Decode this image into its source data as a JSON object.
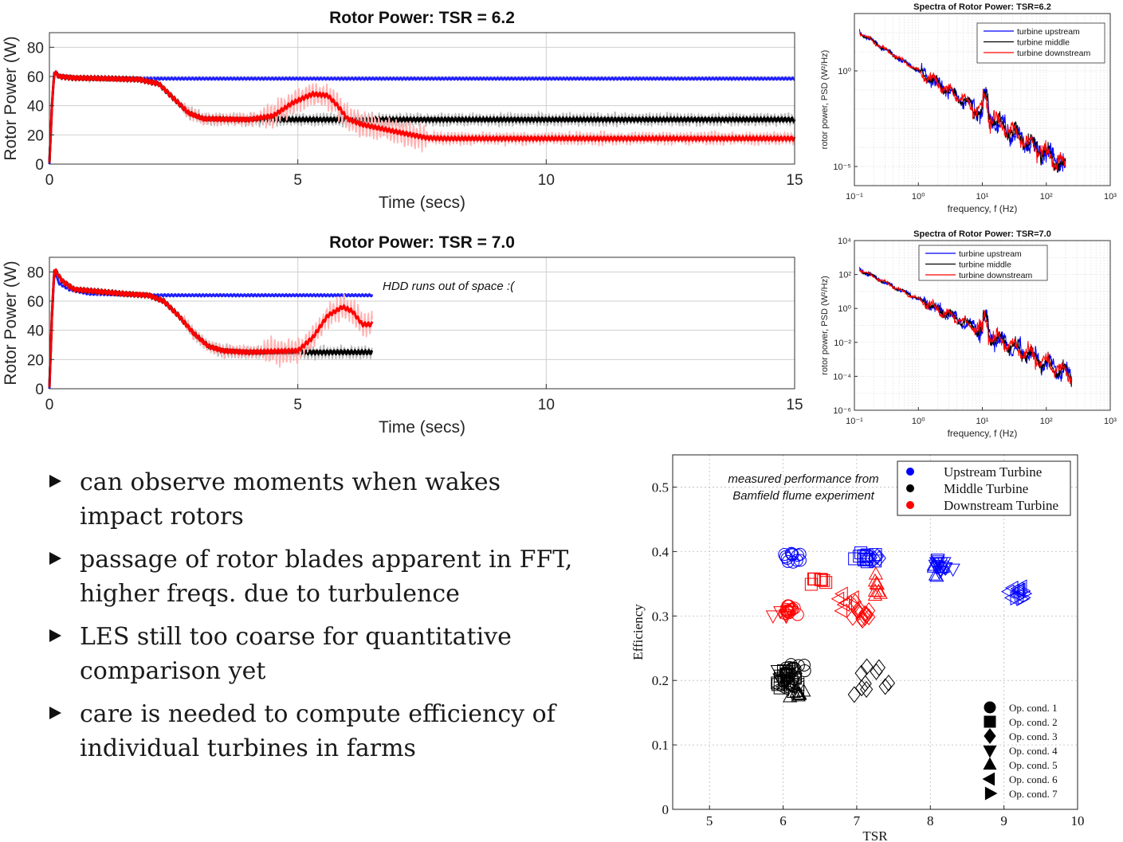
{
  "chart_data": [
    {
      "id": "tsr62",
      "type": "line",
      "title": "Rotor Power: TSR = 6.2",
      "xlabel": "Time (secs)",
      "ylabel": "Rotor Power (W)",
      "xlim": [
        0,
        15
      ],
      "ylim": [
        0,
        90
      ],
      "xticks": [
        0,
        5,
        10,
        15
      ],
      "yticks": [
        0,
        20,
        40,
        60,
        80
      ],
      "grid": true,
      "series": [
        {
          "color": "#1f1fff",
          "points": [
            [
              0,
              0
            ],
            [
              0.05,
              40
            ],
            [
              0.1,
              63
            ],
            [
              0.2,
              60
            ],
            [
              0.5,
              59
            ],
            [
              2,
              58.5
            ],
            [
              15,
              58.5
            ]
          ]
        },
        {
          "color": "#000000",
          "points": [
            [
              0,
              0
            ],
            [
              0.05,
              40
            ],
            [
              0.1,
              63
            ],
            [
              0.2,
              60
            ],
            [
              0.5,
              59
            ],
            [
              1.8,
              58
            ],
            [
              2.2,
              55
            ],
            [
              2.5,
              45
            ],
            [
              2.8,
              35
            ],
            [
              3.1,
              31
            ],
            [
              4,
              30.5
            ],
            [
              15,
              30.5
            ]
          ]
        },
        {
          "color": "#ff0000",
          "points": [
            [
              0,
              0
            ],
            [
              0.05,
              40
            ],
            [
              0.1,
              63
            ],
            [
              0.2,
              60
            ],
            [
              0.5,
              59
            ],
            [
              1.8,
              58
            ],
            [
              2.2,
              55
            ],
            [
              2.5,
              45
            ],
            [
              2.8,
              35
            ],
            [
              3.1,
              31
            ],
            [
              4,
              30.5
            ],
            [
              4.5,
              33
            ],
            [
              4.9,
              42
            ],
            [
              5.3,
              48
            ],
            [
              5.6,
              47
            ],
            [
              5.8,
              40
            ],
            [
              6,
              31
            ],
            [
              6.3,
              27
            ],
            [
              7,
              22
            ],
            [
              7.6,
              18
            ],
            [
              8,
              17.5
            ],
            [
              15,
              17.5
            ]
          ]
        }
      ]
    },
    {
      "id": "tsr70",
      "type": "line",
      "title": "Rotor Power: TSR = 7.0",
      "xlabel": "Time (secs)",
      "ylabel": "Rotor Power (W)",
      "xlim": [
        0,
        15
      ],
      "ylim": [
        0,
        90
      ],
      "xticks": [
        0,
        5,
        10,
        15
      ],
      "yticks": [
        0,
        20,
        40,
        60,
        80
      ],
      "grid": true,
      "annotation": "HDD runs out of space :(",
      "series": [
        {
          "color": "#1f1fff",
          "points": [
            [
              0,
              0
            ],
            [
              0.05,
              50
            ],
            [
              0.1,
              80
            ],
            [
              0.2,
              72
            ],
            [
              0.4,
              68
            ],
            [
              0.8,
              65
            ],
            [
              2,
              64
            ],
            [
              6.5,
              64
            ]
          ]
        },
        {
          "color": "#000000",
          "points": [
            [
              0,
              0
            ],
            [
              0.05,
              50
            ],
            [
              0.1,
              82
            ],
            [
              0.25,
              74
            ],
            [
              0.5,
              68
            ],
            [
              1.5,
              65
            ],
            [
              2,
              64
            ],
            [
              2.3,
              60
            ],
            [
              2.6,
              50
            ],
            [
              2.9,
              38
            ],
            [
              3.2,
              29
            ],
            [
              3.5,
              26
            ],
            [
              4,
              25
            ],
            [
              6.5,
              25
            ]
          ]
        },
        {
          "color": "#ff0000",
          "points": [
            [
              0,
              0
            ],
            [
              0.05,
              50
            ],
            [
              0.1,
              82
            ],
            [
              0.25,
              74
            ],
            [
              0.5,
              68
            ],
            [
              1.5,
              65
            ],
            [
              2,
              64
            ],
            [
              2.3,
              60
            ],
            [
              2.6,
              50
            ],
            [
              2.9,
              38
            ],
            [
              3.2,
              29
            ],
            [
              3.5,
              26
            ],
            [
              4,
              25
            ],
            [
              5,
              26
            ],
            [
              5.3,
              35
            ],
            [
              5.6,
              50
            ],
            [
              5.9,
              56
            ],
            [
              6.1,
              53
            ],
            [
              6.3,
              44
            ],
            [
              6.5,
              44
            ]
          ]
        }
      ]
    },
    {
      "id": "psd62",
      "type": "line",
      "title": "Spectra of Rotor Power: TSR=6.2",
      "xlabel": "frequency, f (Hz)",
      "ylabel": "rotor power, PSD (W²/Hz)",
      "xscale": "log",
      "yscale": "log",
      "xlim": [
        0.1,
        1000
      ],
      "ylim": [
        1e-06,
        1000.0
      ],
      "xtick_labels": [
        "10⁻¹",
        "10⁰",
        "10¹",
        "10²",
        "10³"
      ],
      "ytick_labels": [
        "10⁰",
        "10⁻⁵"
      ],
      "grid": true,
      "legend": "top-right",
      "series": [
        {
          "name": "turbine upstream",
          "color": "#0000ff",
          "x": [
            0.12,
            200
          ],
          "y": [
            100,
            1e-05
          ]
        },
        {
          "name": "turbine middle",
          "color": "#000000",
          "x": [
            0.12,
            200
          ],
          "y": [
            100,
            1e-05
          ]
        },
        {
          "name": "turbine downstream",
          "color": "#ff0000",
          "x": [
            0.12,
            200
          ],
          "y": [
            100,
            1e-05
          ]
        }
      ]
    },
    {
      "id": "psd70",
      "type": "line",
      "title": "Spectra of Rotor Power: TSR=7.0",
      "xlabel": "frequency, f (Hz)",
      "ylabel": "rotor power, PSD (W²/Hz)",
      "xscale": "log",
      "yscale": "log",
      "xlim": [
        0.1,
        1000
      ],
      "ylim": [
        1e-06,
        10000.0
      ],
      "xtick_labels": [
        "10⁻¹",
        "10⁰",
        "10¹",
        "10²",
        "10³"
      ],
      "ytick_labels": [
        "10⁴",
        "10²",
        "10⁰",
        "10⁻²",
        "10⁻⁴",
        "10⁻⁶"
      ],
      "grid": true,
      "legend": "top-center",
      "series": [
        {
          "name": "turbine upstream",
          "color": "#0000ff",
          "x": [
            0.12,
            250
          ],
          "y": [
            200,
            0.0001
          ]
        },
        {
          "name": "turbine middle",
          "color": "#000000",
          "x": [
            0.12,
            250
          ],
          "y": [
            200,
            0.0001
          ]
        },
        {
          "name": "turbine downstream",
          "color": "#ff0000",
          "x": [
            0.12,
            250
          ],
          "y": [
            200,
            0.0001
          ]
        }
      ]
    },
    {
      "id": "eff",
      "type": "scatter",
      "xlabel": "TSR",
      "ylabel": "Efficiency",
      "xlim": [
        4.5,
        10
      ],
      "ylim": [
        0,
        0.55
      ],
      "xticks": [
        5,
        6,
        7,
        8,
        9,
        10
      ],
      "yticks": [
        0,
        0.1,
        0.2,
        0.3,
        0.4,
        0.5
      ],
      "ytick_labels": [
        "0",
        "0.1",
        "0.2",
        "0.3",
        "0.4",
        "0.5"
      ],
      "grid": true,
      "annotation": [
        "measured performance from",
        "Bamfield flume experiment"
      ],
      "legend": [
        {
          "name": "Upstream Turbine",
          "color": "#0000ff"
        },
        {
          "name": "Middle Turbine",
          "color": "#000000"
        },
        {
          "name": "Downstream Turbine",
          "color": "#ff0000"
        }
      ],
      "marker_legend": [
        "Op. cond. 1",
        "Op. cond. 2",
        "Op. cond. 3",
        "Op. cond. 4",
        "Op. cond. 5",
        "Op. cond. 6",
        "Op. cond. 7"
      ],
      "clusters": [
        {
          "series": "Upstream Turbine",
          "color": "#0000ff",
          "marker": "circle",
          "cx": 6.15,
          "cy": 0.39,
          "sx": 0.15,
          "sy": 0.012,
          "n": 12
        },
        {
          "series": "Upstream Turbine",
          "color": "#0000ff",
          "marker": "square",
          "cx": 7.1,
          "cy": 0.39,
          "sx": 0.15,
          "sy": 0.01,
          "n": 14
        },
        {
          "series": "Upstream Turbine",
          "color": "#0000ff",
          "marker": "diamond",
          "cx": 7.25,
          "cy": 0.39,
          "sx": 0.1,
          "sy": 0.01,
          "n": 5
        },
        {
          "series": "Upstream Turbine",
          "color": "#0000ff",
          "marker": "tri-down",
          "cx": 8.15,
          "cy": 0.378,
          "sx": 0.15,
          "sy": 0.012,
          "n": 14
        },
        {
          "series": "Upstream Turbine",
          "color": "#0000ff",
          "marker": "tri-up",
          "cx": 8.1,
          "cy": 0.37,
          "sx": 0.12,
          "sy": 0.01,
          "n": 6
        },
        {
          "series": "Upstream Turbine",
          "color": "#0000ff",
          "marker": "tri-left",
          "cx": 9.2,
          "cy": 0.34,
          "sx": 0.12,
          "sy": 0.012,
          "n": 8
        },
        {
          "series": "Upstream Turbine",
          "color": "#0000ff",
          "marker": "tri-right",
          "cx": 9.25,
          "cy": 0.335,
          "sx": 0.1,
          "sy": 0.01,
          "n": 6
        },
        {
          "series": "Downstream Turbine",
          "color": "#ff0000",
          "marker": "circle",
          "cx": 6.1,
          "cy": 0.31,
          "sx": 0.12,
          "sy": 0.01,
          "n": 14
        },
        {
          "series": "Downstream Turbine",
          "color": "#ff0000",
          "marker": "square",
          "cx": 6.5,
          "cy": 0.355,
          "sx": 0.12,
          "sy": 0.006,
          "n": 8
        },
        {
          "series": "Downstream Turbine",
          "color": "#ff0000",
          "marker": "diamond",
          "cx": 7.1,
          "cy": 0.305,
          "sx": 0.2,
          "sy": 0.015,
          "n": 14
        },
        {
          "series": "Downstream Turbine",
          "color": "#ff0000",
          "marker": "tri-down",
          "cx": 6.0,
          "cy": 0.305,
          "sx": 0.25,
          "sy": 0.008,
          "n": 6
        },
        {
          "series": "Downstream Turbine",
          "color": "#ff0000",
          "marker": "tri-up",
          "cx": 7.3,
          "cy": 0.34,
          "sx": 0.15,
          "sy": 0.025,
          "n": 8
        },
        {
          "series": "Downstream Turbine",
          "color": "#ff0000",
          "marker": "tri-left",
          "cx": 6.75,
          "cy": 0.32,
          "sx": 0.2,
          "sy": 0.02,
          "n": 6
        },
        {
          "series": "Middle Turbine",
          "color": "#000000",
          "marker": "circle",
          "cx": 6.15,
          "cy": 0.22,
          "sx": 0.15,
          "sy": 0.012,
          "n": 12
        },
        {
          "series": "Middle Turbine",
          "color": "#000000",
          "marker": "square",
          "cx": 6.05,
          "cy": 0.2,
          "sx": 0.15,
          "sy": 0.015,
          "n": 14
        },
        {
          "series": "Middle Turbine",
          "color": "#000000",
          "marker": "diamond",
          "cx": 7.15,
          "cy": 0.2,
          "sx": 0.25,
          "sy": 0.025,
          "n": 10
        },
        {
          "series": "Middle Turbine",
          "color": "#000000",
          "marker": "tri-down",
          "cx": 6.05,
          "cy": 0.205,
          "sx": 0.15,
          "sy": 0.012,
          "n": 12
        },
        {
          "series": "Middle Turbine",
          "color": "#000000",
          "marker": "tri-up",
          "cx": 6.2,
          "cy": 0.18,
          "sx": 0.15,
          "sy": 0.008,
          "n": 8
        },
        {
          "series": "Middle Turbine",
          "color": "#000000",
          "marker": "tri-left",
          "cx": 6.1,
          "cy": 0.19,
          "sx": 0.2,
          "sy": 0.01,
          "n": 10
        }
      ]
    }
  ],
  "bullets": [
    "can observe moments when wakes impact rotors",
    "passage of rotor blades apparent in FFT, higher freqs. due to turbulence",
    "LES still too coarse for quantitative comparison yet",
    "care is needed to compute efficiency of individual turbines in farms"
  ]
}
